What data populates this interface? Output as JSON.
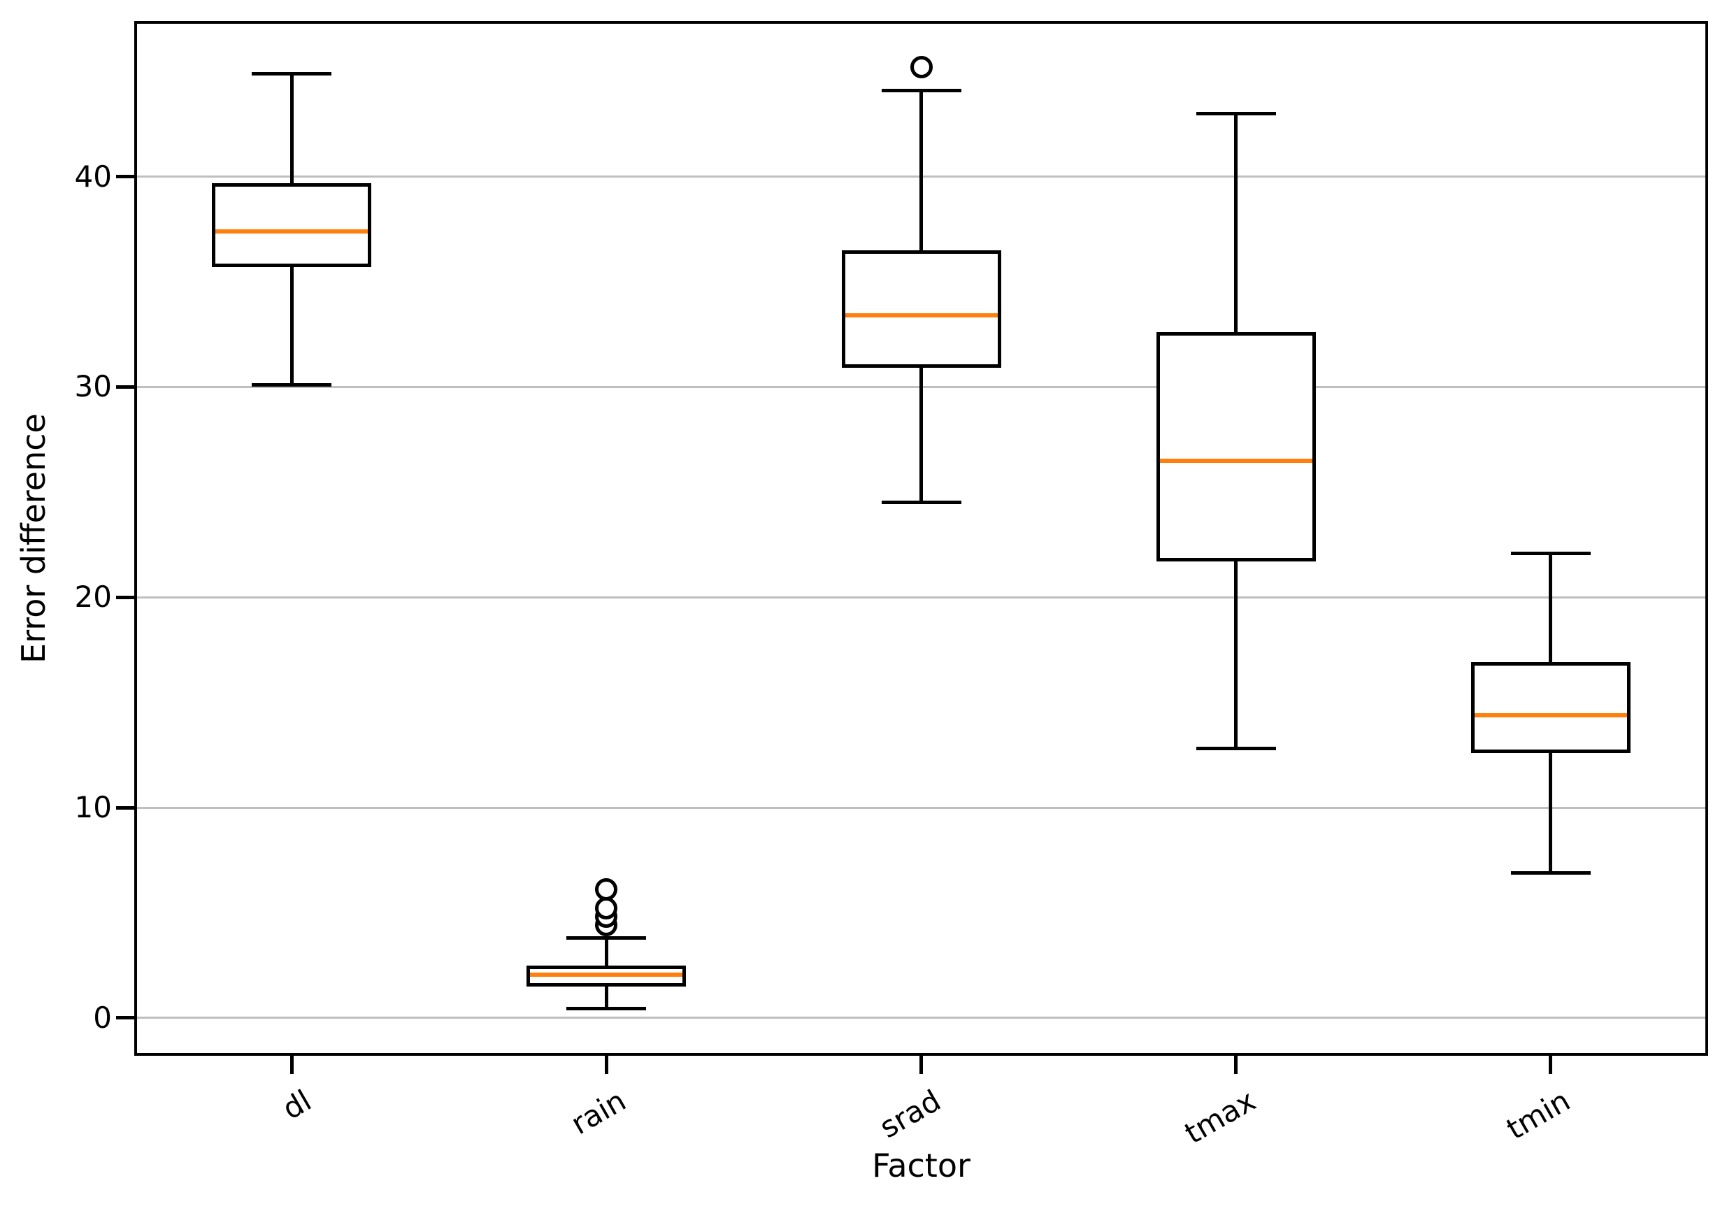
{
  "figure": {
    "title": "",
    "xlabel": "Factor",
    "ylabel": "Error difference"
  },
  "chart_data": {
    "type": "box",
    "title": "",
    "xlabel": "Factor",
    "ylabel": "Error difference",
    "categories": [
      "dl",
      "rain",
      "srad",
      "tmax",
      "tmin"
    ],
    "yticks": [
      0,
      10,
      20,
      30,
      40
    ],
    "ylim": [
      -1.8,
      47.4
    ],
    "grid": true,
    "legend": false,
    "series": [
      {
        "name": "dl",
        "whisker_low": 30.1,
        "q1": 35.7,
        "median": 37.4,
        "q3": 39.7,
        "whisker_high": 44.9,
        "outliers": []
      },
      {
        "name": "rain",
        "whisker_low": 0.45,
        "q1": 1.5,
        "median": 2.05,
        "q3": 2.5,
        "whisker_high": 3.8,
        "outliers": [
          4.4,
          4.8,
          5.2,
          6.1
        ]
      },
      {
        "name": "srad",
        "whisker_low": 24.5,
        "q1": 30.9,
        "median": 33.4,
        "q3": 36.5,
        "whisker_high": 44.1,
        "outliers": [
          45.2
        ]
      },
      {
        "name": "tmax",
        "whisker_low": 12.8,
        "q1": 21.7,
        "median": 26.5,
        "q3": 32.6,
        "whisker_high": 43.0,
        "outliers": []
      },
      {
        "name": "tmin",
        "whisker_low": 6.9,
        "q1": 12.6,
        "median": 14.4,
        "q3": 16.9,
        "whisker_high": 22.1,
        "outliers": []
      }
    ],
    "colors": {
      "box_edge": "#000000",
      "whisker": "#000000",
      "median": "#ff7f0e",
      "grid": "#bfbfbf",
      "background": "#ffffff"
    }
  }
}
